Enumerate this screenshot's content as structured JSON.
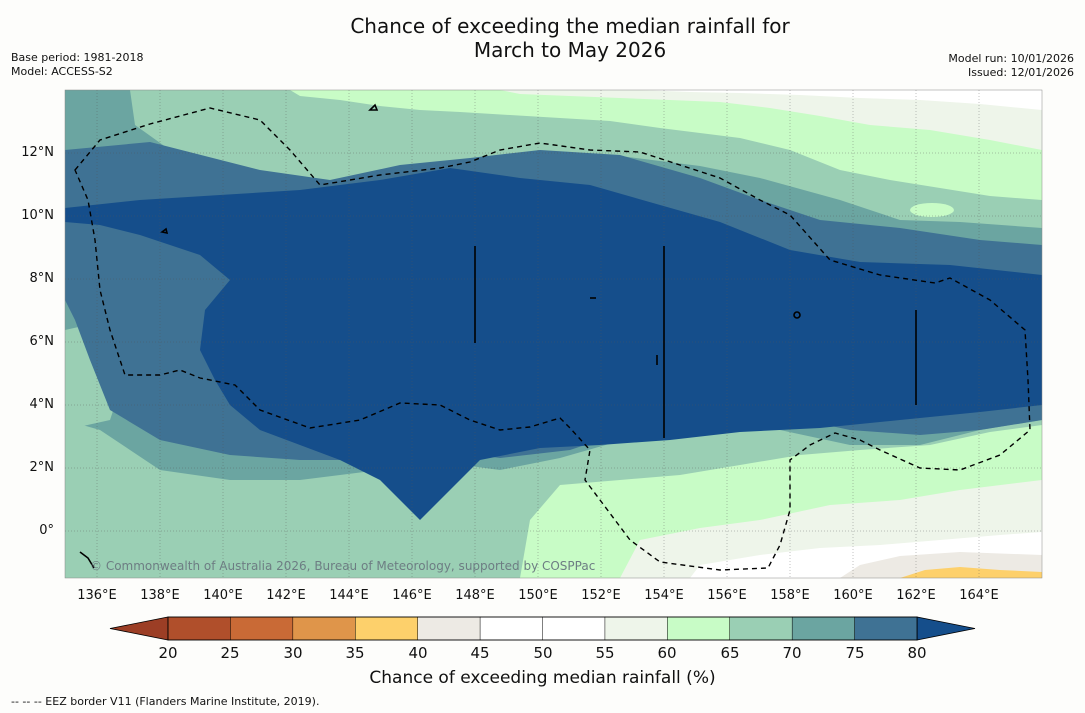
{
  "title": {
    "line1": "Chance of exceeding the median rainfall for",
    "line2": "March to May 2026"
  },
  "meta_left": {
    "base_period": "Base period: 1981-2018",
    "model": "Model: ACCESS-S2"
  },
  "meta_right": {
    "model_run": "Model run: 10/01/2026",
    "issued": "Issued: 12/01/2026"
  },
  "map": {
    "lat_labels": [
      "12°N",
      "10°N",
      "8°N",
      "6°N",
      "4°N",
      "2°N",
      "0°"
    ],
    "lon_labels": [
      "136°E",
      "138°E",
      "140°E",
      "142°E",
      "144°E",
      "146°E",
      "148°E",
      "150°E",
      "152°E",
      "154°E",
      "156°E",
      "158°E",
      "160°E",
      "162°E",
      "164°E"
    ],
    "credit": "© Commonwealth of Australia 2026, Bureau of Meteorology, supported by COSPPac",
    "border_style": "dashed"
  },
  "colorbar": {
    "ticks": [
      "20",
      "25",
      "30",
      "35",
      "40",
      "45",
      "50",
      "55",
      "60",
      "65",
      "70",
      "75",
      "80"
    ],
    "colors": [
      "#b04f2b",
      "#c96a36",
      "#df954a",
      "#fdd06b",
      "#edeae4",
      "#ffffff",
      "#ffffff",
      "#eef5ea",
      "#c8fcc6",
      "#9acfb4",
      "#6ba5a1",
      "#3f7294",
      "#154e8b"
    ],
    "low_extend_color": "#9c3e25",
    "high_extend_color": "#154e8b",
    "label": "Chance of exceeding median rainfall (%)"
  },
  "footer": "--  --  -- EEZ border V11 (Flanders Marine Institute, 2019)."
}
